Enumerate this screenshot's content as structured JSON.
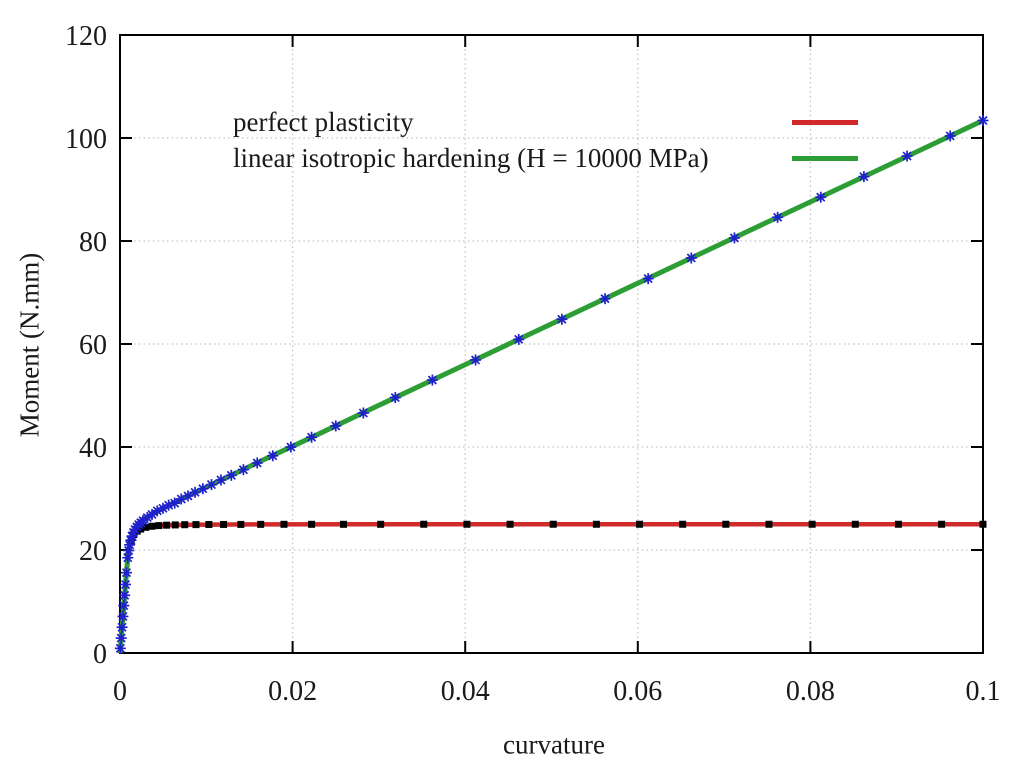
{
  "chart_data": {
    "type": "line",
    "title": "",
    "xlabel": "curvature",
    "ylabel": "Moment (N.mm)",
    "xlim": [
      0,
      0.1
    ],
    "ylim": [
      0,
      120
    ],
    "grid": true,
    "legend_position": "inside top, samples right of labels",
    "x_ticks": [
      {
        "v": 0,
        "label": "0"
      },
      {
        "v": 0.02,
        "label": "0.02"
      },
      {
        "v": 0.04,
        "label": "0.04"
      },
      {
        "v": 0.06,
        "label": "0.06"
      },
      {
        "v": 0.08,
        "label": "0.08"
      },
      {
        "v": 0.1,
        "label": "0.1"
      }
    ],
    "y_ticks": [
      {
        "v": 0,
        "label": "0"
      },
      {
        "v": 20,
        "label": "20"
      },
      {
        "v": 40,
        "label": "40"
      },
      {
        "v": 60,
        "label": "60"
      },
      {
        "v": 80,
        "label": "80"
      },
      {
        "v": 100,
        "label": "100"
      },
      {
        "v": 120,
        "label": "120"
      }
    ],
    "x_gridlines": [
      0.02,
      0.04,
      0.06,
      0.08
    ],
    "y_gridlines": [
      20,
      40,
      60,
      80,
      100
    ],
    "grid_color": "#c4c4c4",
    "axis_color": "#000000",
    "text_color": "#1a1a1a",
    "series": [
      {
        "name": "perfect plasticity",
        "line_color": "#d02a2a",
        "line_width": 4.5,
        "marker": "filled-square",
        "marker_color": "#000000",
        "marker_size": 7,
        "line": [
          [
            0,
            0
          ],
          [
            0.0004,
            8.3
          ],
          [
            0.0008,
            16.7
          ],
          [
            0.001,
            19.7
          ],
          [
            0.0012,
            21.3
          ],
          [
            0.0015,
            22.6
          ],
          [
            0.002,
            23.7
          ],
          [
            0.0025,
            24.1
          ],
          [
            0.003,
            24.5
          ],
          [
            0.004,
            24.7
          ],
          [
            0.005,
            24.8
          ],
          [
            0.008,
            24.9
          ],
          [
            0.015,
            24.98
          ],
          [
            0.03,
            25
          ],
          [
            0.1,
            25
          ]
        ],
        "markers": [
          [
            0.0013,
            21.8
          ],
          [
            0.0016,
            23.0
          ],
          [
            0.002,
            23.67
          ],
          [
            0.0024,
            24.07
          ],
          [
            0.003,
            24.41
          ],
          [
            0.0037,
            24.61
          ],
          [
            0.0045,
            24.74
          ],
          [
            0.0054,
            24.82
          ],
          [
            0.0064,
            24.87
          ],
          [
            0.0075,
            24.91
          ],
          [
            0.0088,
            24.93
          ],
          [
            0.0103,
            24.95
          ],
          [
            0.012,
            24.96
          ],
          [
            0.014,
            24.97
          ],
          [
            0.0163,
            24.98
          ],
          [
            0.019,
            24.99
          ],
          [
            0.0222,
            24.99
          ],
          [
            0.0259,
            24.99
          ],
          [
            0.0302,
            24.99
          ],
          [
            0.0352,
            25
          ],
          [
            0.0402,
            25
          ],
          [
            0.0452,
            25
          ],
          [
            0.0502,
            25
          ],
          [
            0.0552,
            25
          ],
          [
            0.0602,
            25
          ],
          [
            0.0652,
            25
          ],
          [
            0.0702,
            25
          ],
          [
            0.0752,
            25
          ],
          [
            0.0802,
            25
          ],
          [
            0.0852,
            25
          ],
          [
            0.0902,
            25
          ],
          [
            0.0952,
            25
          ],
          [
            0.1,
            25
          ]
        ]
      },
      {
        "name": "linear isotropic hardening (H = 10000 MPa)",
        "line_color": "#2d9e35",
        "line_width": 5,
        "marker": "asterisk",
        "marker_color": "#2020cc",
        "marker_size": 11,
        "line": [
          [
            0,
            0
          ],
          [
            0.0004,
            8.3
          ],
          [
            0.0008,
            16.7
          ],
          [
            0.001,
            19.9
          ],
          [
            0.0012,
            21.7
          ],
          [
            0.0015,
            23.3
          ],
          [
            0.002,
            24.8
          ],
          [
            0.0025,
            25.5
          ],
          [
            0.003,
            26.2
          ],
          [
            0.004,
            27.2
          ],
          [
            0.005,
            28.1
          ],
          [
            0.0065,
            29.4
          ],
          [
            0.008,
            30.6
          ],
          [
            0.01,
            32.2
          ],
          [
            0.013,
            34.6
          ],
          [
            0.017,
            37.8
          ],
          [
            0.022,
            41.7
          ],
          [
            0.03,
            48.1
          ],
          [
            0.04,
            56.0
          ],
          [
            0.05,
            63.9
          ],
          [
            0.06,
            71.8
          ],
          [
            0.07,
            79.7
          ],
          [
            0.08,
            87.6
          ],
          [
            0.09,
            95.5
          ],
          [
            0.1,
            103.4
          ]
        ],
        "markers": [
          [
            4e-05,
            0.9
          ],
          [
            0.00014,
            2.9
          ],
          [
            0.00024,
            5.0
          ],
          [
            0.00034,
            7.1
          ],
          [
            0.00044,
            9.2
          ],
          [
            0.00054,
            11.2
          ],
          [
            0.00064,
            13.3
          ],
          [
            0.00075,
            15.6
          ],
          [
            0.0009,
            18.5
          ],
          [
            0.001,
            19.9
          ],
          [
            0.00112,
            21.0
          ],
          [
            0.00126,
            21.9
          ],
          [
            0.00139,
            22.7
          ],
          [
            0.00156,
            23.4
          ],
          [
            0.00174,
            24.0
          ],
          [
            0.00195,
            24.5
          ],
          [
            0.00217,
            24.95
          ],
          [
            0.00241,
            25.3
          ],
          [
            0.00266,
            25.7
          ],
          [
            0.00316,
            26.3
          ],
          [
            0.00371,
            26.9
          ],
          [
            0.00432,
            27.6
          ],
          [
            0.00498,
            28.1
          ],
          [
            0.00564,
            28.7
          ],
          [
            0.00634,
            29.1
          ],
          [
            0.0071,
            29.9
          ],
          [
            0.00788,
            30.5
          ],
          [
            0.0087,
            31.2
          ],
          [
            0.0096,
            31.9
          ],
          [
            0.0106,
            32.7
          ],
          [
            0.0117,
            33.6
          ],
          [
            0.0129,
            34.5
          ],
          [
            0.0143,
            35.6
          ],
          [
            0.0159,
            36.9
          ],
          [
            0.0177,
            38.3
          ],
          [
            0.0198,
            40.0
          ],
          [
            0.0222,
            41.9
          ],
          [
            0.025,
            44.1
          ],
          [
            0.0282,
            46.6
          ],
          [
            0.0319,
            49.6
          ],
          [
            0.0362,
            53.0
          ],
          [
            0.0412,
            56.9
          ],
          [
            0.0462,
            60.9
          ],
          [
            0.0512,
            64.8
          ],
          [
            0.0562,
            68.8
          ],
          [
            0.0612,
            72.7
          ],
          [
            0.0662,
            76.7
          ],
          [
            0.0712,
            80.6
          ],
          [
            0.0762,
            84.6
          ],
          [
            0.0812,
            88.5
          ],
          [
            0.0862,
            92.5
          ],
          [
            0.0912,
            96.5
          ],
          [
            0.0962,
            100.4
          ],
          [
            0.1,
            103.4
          ]
        ]
      }
    ]
  }
}
